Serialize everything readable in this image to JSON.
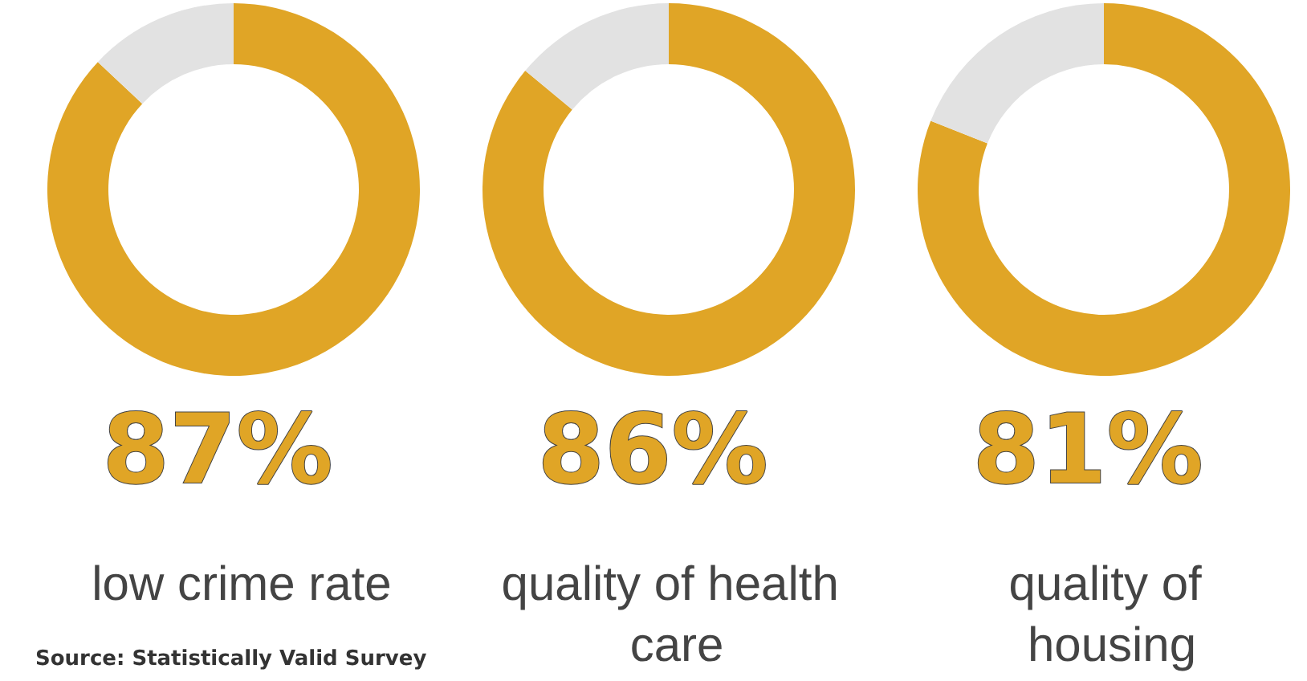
{
  "chart_data": [
    {
      "type": "donut",
      "title": "low crime rate",
      "categories": [
        null,
        null
      ],
      "values": [
        87,
        13
      ],
      "colors": [
        "#e0a526",
        "#e2e2e2"
      ],
      "value_labels": [
        "87%",
        null
      ],
      "annotations": [
        "Source: Statistically Valid Survey"
      ]
    },
    {
      "type": "donut",
      "title": "quality of health care",
      "categories": [
        null,
        null
      ],
      "values": [
        86,
        14
      ],
      "colors": [
        "#e0a526",
        "#e2e2e2"
      ],
      "value_labels": [
        "86%",
        null
      ]
    },
    {
      "type": "donut",
      "title": "quality of housing",
      "categories": [
        null,
        null
      ],
      "values": [
        81,
        19
      ],
      "colors": [
        "#e0a526",
        "#e2e2e2"
      ],
      "value_labels": [
        "81%",
        null
      ]
    }
  ]
}
